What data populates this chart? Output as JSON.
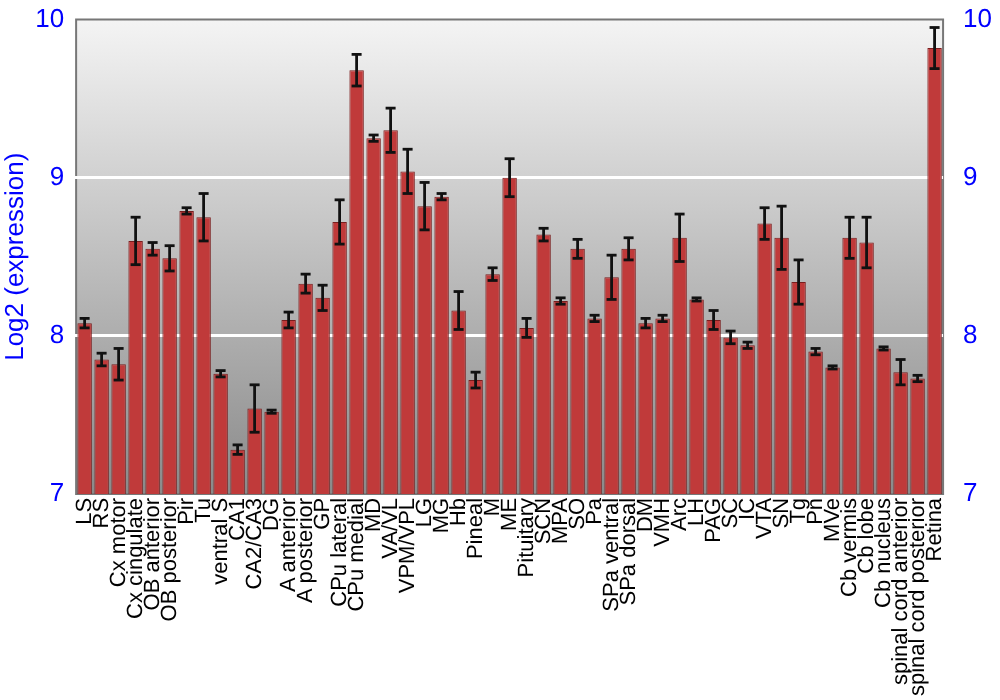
{
  "chart_data": {
    "type": "bar",
    "ylabel": "Log2 (expression)",
    "categories": [
      "LS",
      "RS",
      "Cx motor",
      "Cx cingulate",
      "OB anterior",
      "OB posterior",
      "Pir",
      "Tu",
      "ventral S",
      "CA1",
      "CA2/CA3",
      "DG",
      "A anterior",
      "A posterior",
      "GP",
      "CPu lateral",
      "CPu medial",
      "MD",
      "VA/VL",
      "VPM/VPL",
      "LG",
      "MG",
      "Hb",
      "Pineal",
      "M",
      "ME",
      "Pituitary",
      "SCN",
      "MPA",
      "SO",
      "Pa",
      "SPa ventral",
      "SPa dorsal",
      "DM",
      "VMH",
      "Arc",
      "LH",
      "PAG",
      "SC",
      "IC",
      "VTA",
      "SN",
      "Tg",
      "Pn",
      "MVe",
      "Cb vermis",
      "Cb lobe",
      "Cb nucleus",
      "spinal cord anterior",
      "spinal cord posterior",
      "Retina"
    ],
    "values": [
      8.08,
      7.85,
      7.82,
      8.6,
      8.55,
      8.49,
      8.79,
      8.75,
      7.76,
      7.28,
      7.54,
      7.52,
      8.1,
      8.33,
      8.24,
      8.72,
      9.68,
      9.25,
      9.3,
      9.04,
      8.82,
      8.88,
      8.16,
      7.72,
      8.39,
      9.0,
      8.05,
      8.64,
      8.22,
      8.55,
      8.11,
      8.37,
      8.55,
      8.08,
      8.11,
      8.62,
      8.23,
      8.1,
      7.99,
      7.94,
      8.71,
      8.62,
      8.34,
      7.9,
      7.8,
      8.62,
      8.59,
      7.92,
      7.77,
      7.73,
      9.82
    ],
    "errors": [
      0.03,
      0.04,
      0.1,
      0.15,
      0.04,
      0.08,
      0.02,
      0.15,
      0.02,
      0.03,
      0.15,
      0.01,
      0.05,
      0.06,
      0.08,
      0.14,
      0.1,
      0.02,
      0.14,
      0.14,
      0.15,
      0.02,
      0.12,
      0.05,
      0.04,
      0.12,
      0.06,
      0.04,
      0.02,
      0.06,
      0.02,
      0.14,
      0.07,
      0.03,
      0.02,
      0.15,
      0.01,
      0.06,
      0.04,
      0.02,
      0.1,
      0.2,
      0.14,
      0.02,
      0.01,
      0.13,
      0.16,
      0.01,
      0.08,
      0.02,
      0.13
    ],
    "color": "#c03a3a",
    "ylim": [
      7,
      10
    ],
    "yticks": [
      7,
      8,
      9,
      10
    ],
    "y2lim": [
      7,
      10
    ],
    "y2ticks": [
      7,
      8,
      9,
      10
    ],
    "grid": "y",
    "legend": false
  }
}
